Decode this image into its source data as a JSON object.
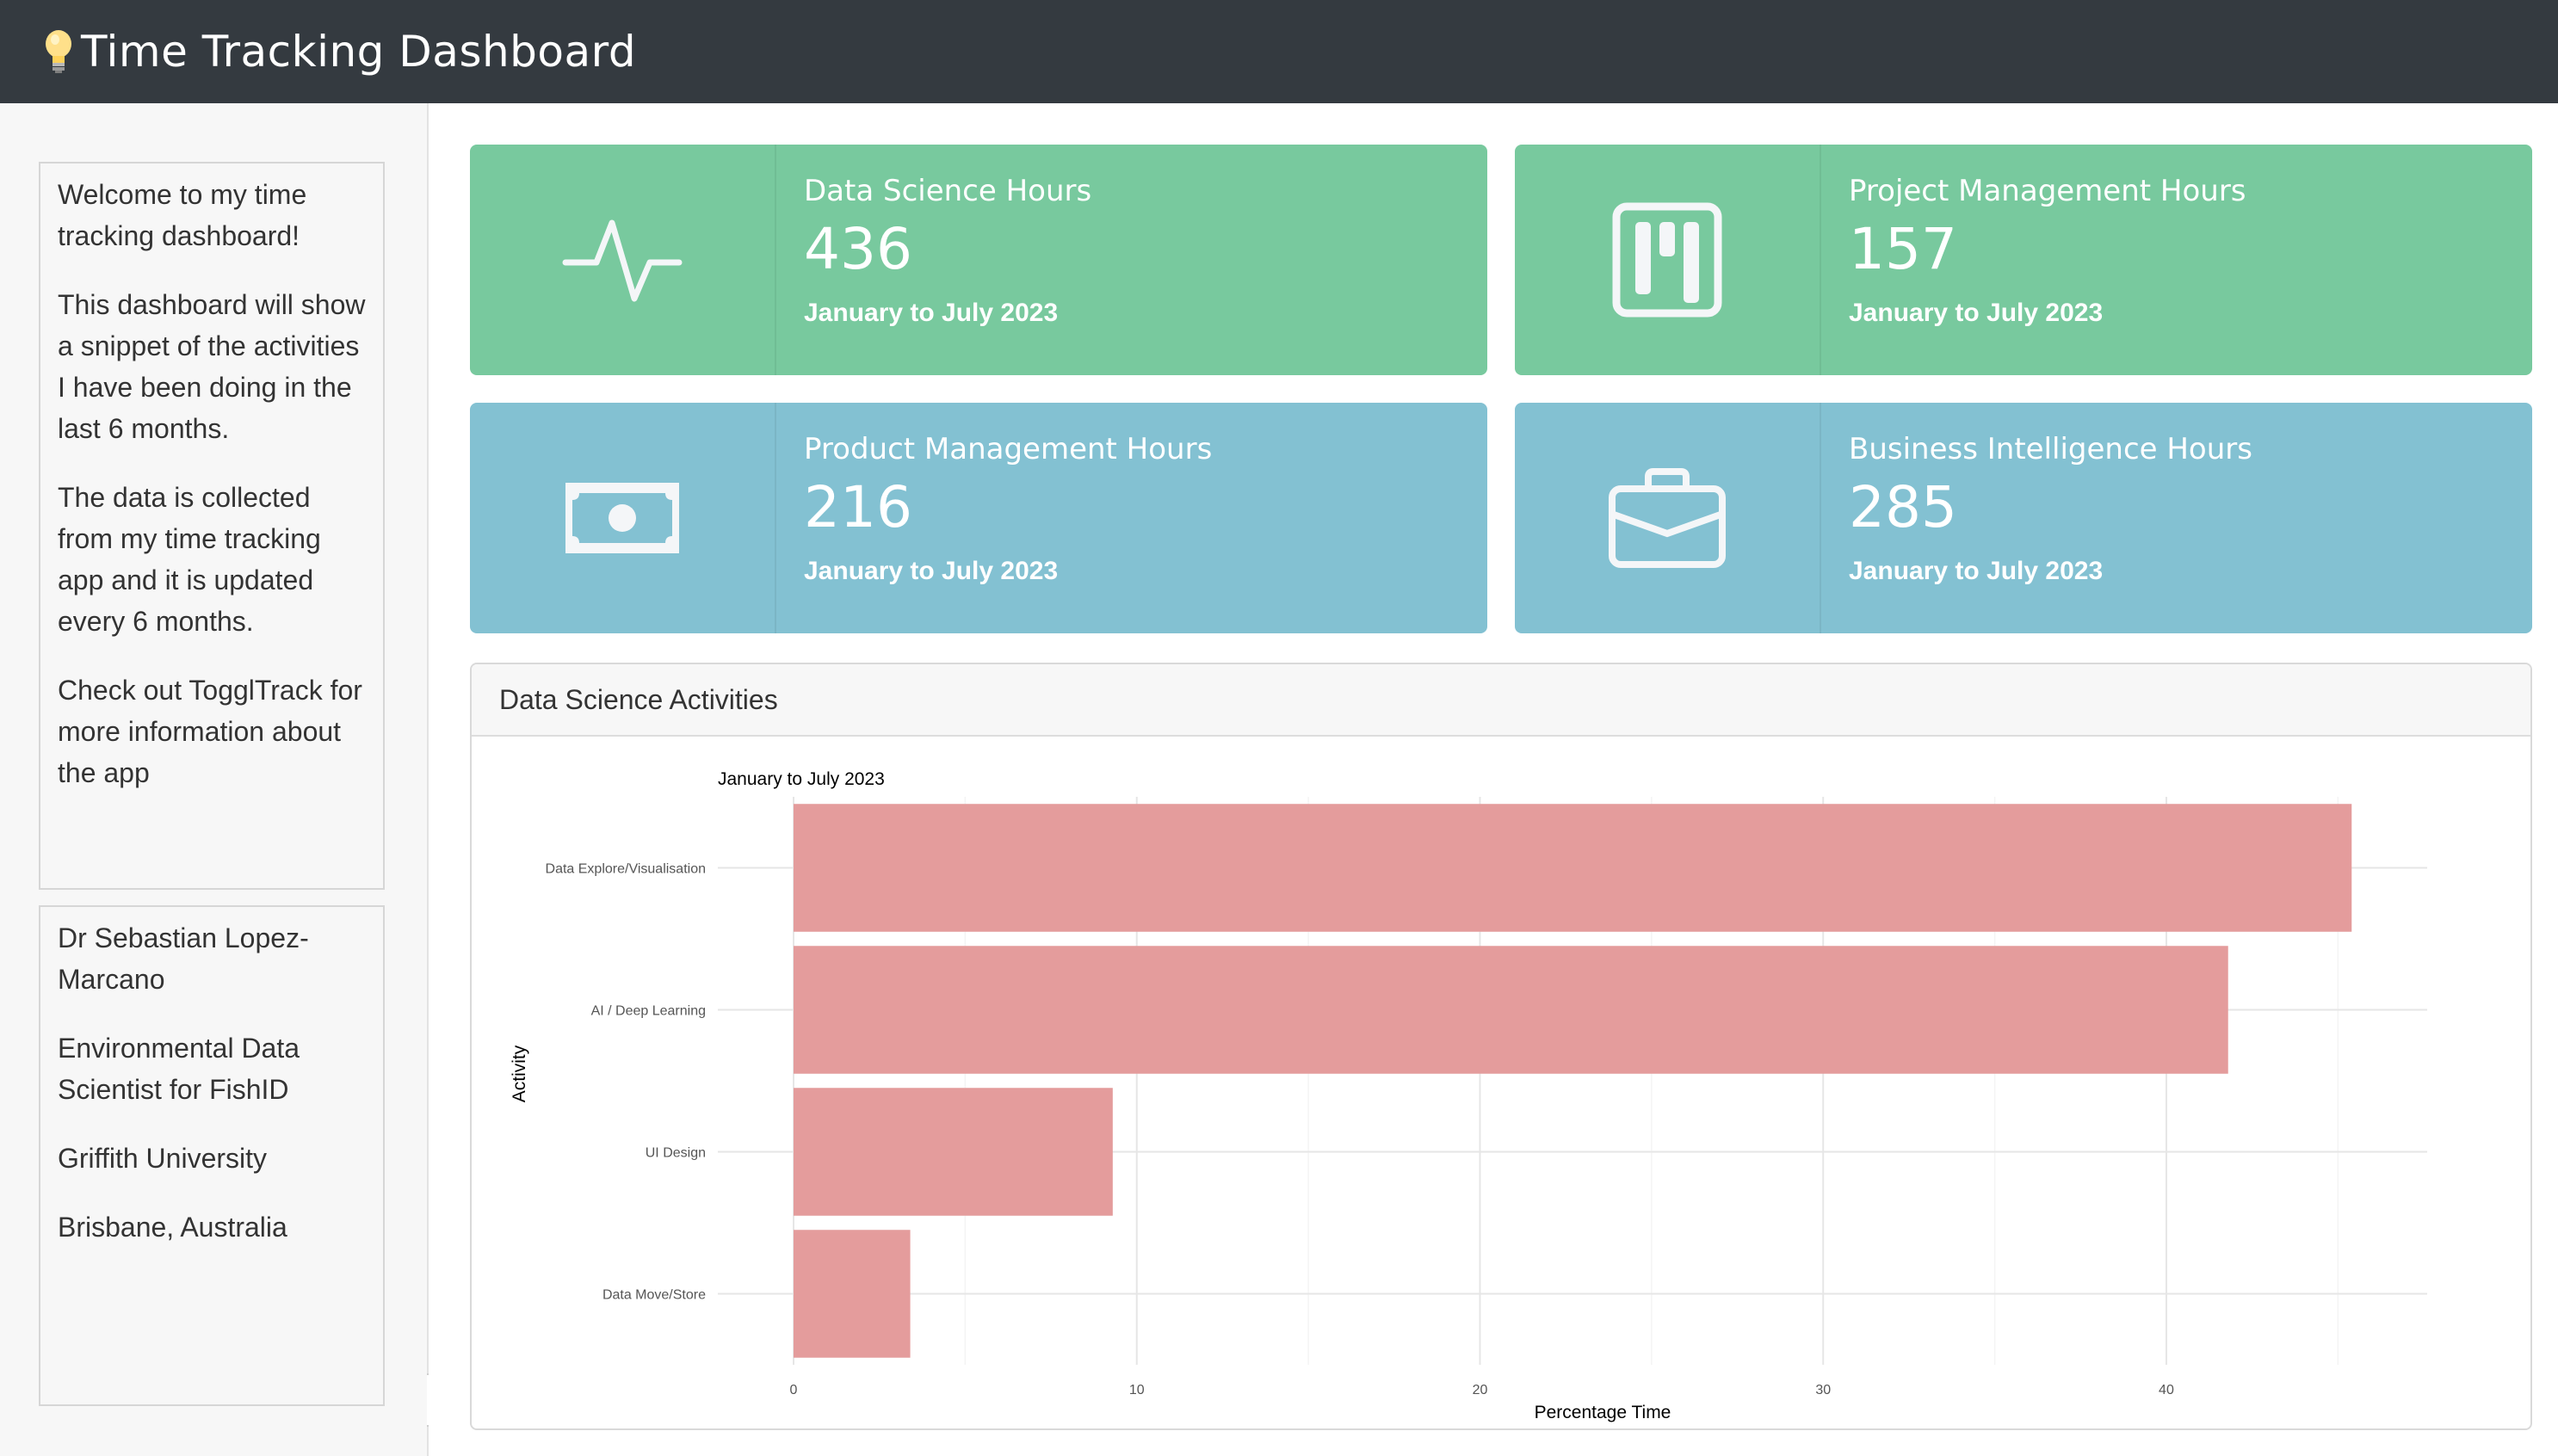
{
  "navbar": {
    "title": "Time Tracking Dashboard",
    "icon": "lightbulb-icon"
  },
  "sidebar": {
    "about": [
      "Welcome to my time tracking dashboard!",
      "This dashboard will show a snippet of the activities I have been doing in the last 6 months.",
      "The data is collected from my time tracking app and it is updated every 6 months.",
      "Check out TogglTrack for more information about the app"
    ],
    "author": [
      "Dr Sebastian Lopez-Marcano",
      "Environmental Data Scientist for FishID",
      "Griffith University",
      "Brisbane, Australia"
    ]
  },
  "value_boxes": [
    {
      "title": "Data Science Hours",
      "value": "436",
      "subtitle": "January to July 2023",
      "icon": "activity-pulse-icon",
      "color": "#78c99e"
    },
    {
      "title": "Project Management Hours",
      "value": "157",
      "subtitle": "January to July 2023",
      "icon": "kanban-board-icon",
      "color": "#78c99e"
    },
    {
      "title": "Product Management Hours",
      "value": "216",
      "subtitle": "January to July 2023",
      "icon": "cash-icon",
      "color": "#83c1d2"
    },
    {
      "title": "Business Intelligence Hours",
      "value": "285",
      "subtitle": "January to July 2023",
      "icon": "briefcase-icon",
      "color": "#83c1d2"
    }
  ],
  "activities_card": {
    "header": "Data Science Activities"
  },
  "chart_data": {
    "type": "bar",
    "orientation": "horizontal",
    "title": "January to July 2023",
    "xlabel": "Percentage Time",
    "ylabel": "Activity",
    "categories": [
      "Data Explore/Visualisation",
      "AI / Deep Learning",
      "UI Design",
      "Data Move/Store"
    ],
    "values": [
      45.4,
      41.8,
      9.3,
      3.4
    ],
    "xlim": [
      0,
      47.6
    ],
    "xticks": [
      0,
      10,
      20,
      30,
      40
    ],
    "bar_color": "#e49c9c",
    "grid": true
  }
}
